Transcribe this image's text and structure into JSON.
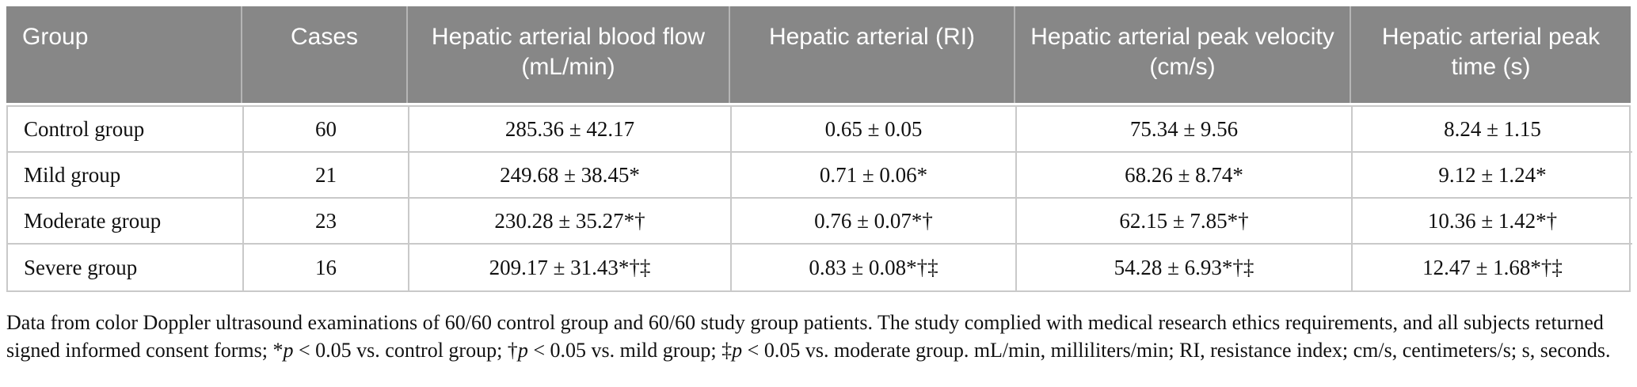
{
  "table": {
    "columns": [
      "Group",
      "Cases",
      "Hepatic arterial blood flow (mL/min)",
      "Hepatic arterial (RI)",
      "Hepatic arterial peak velocity (cm/s)",
      "Hepatic arterial peak time (s)"
    ],
    "rows": [
      [
        "Control group",
        "60",
        "285.36 ± 42.17",
        "0.65 ± 0.05",
        "75.34 ± 9.56",
        "8.24 ± 1.15"
      ],
      [
        "Mild group",
        "21",
        "249.68 ± 38.45*",
        "0.71 ± 0.06*",
        "68.26 ± 8.74*",
        "9.12 ± 1.24*"
      ],
      [
        "Moderate group",
        "23",
        "230.28 ± 35.27*†",
        "0.76 ± 0.07*†",
        "62.15 ± 7.85*†",
        "10.36 ± 1.42*†"
      ],
      [
        "Severe group",
        "16",
        "209.17 ± 31.43*†‡",
        "0.83 ± 0.08*†‡",
        "54.28 ± 6.93*†‡",
        "12.47 ± 1.68*†‡"
      ]
    ]
  },
  "footnote_segments": [
    {
      "text": "Data from color Doppler ultrasound examinations of 60/60 control group and 60/60 study group patients. The study complied with medical research ethics requirements, and all subjects returned signed informed consent forms; *",
      "italic": false
    },
    {
      "text": "p",
      "italic": true
    },
    {
      "text": " < 0.05 vs. control group; †",
      "italic": false
    },
    {
      "text": "p",
      "italic": true
    },
    {
      "text": " < 0.05 vs. mild group; ‡",
      "italic": false
    },
    {
      "text": "p",
      "italic": true
    },
    {
      "text": " < 0.05 vs. moderate group. mL/min, milliliters/min; RI, resistance index; cm/s, centimeters/s; s, seconds.",
      "italic": false
    }
  ],
  "colors": {
    "header_bg": "#878787",
    "header_text": "#ffffff",
    "header_divider": "#b5b5b5",
    "body_border": "#c9c9c9",
    "text": "#111111"
  }
}
